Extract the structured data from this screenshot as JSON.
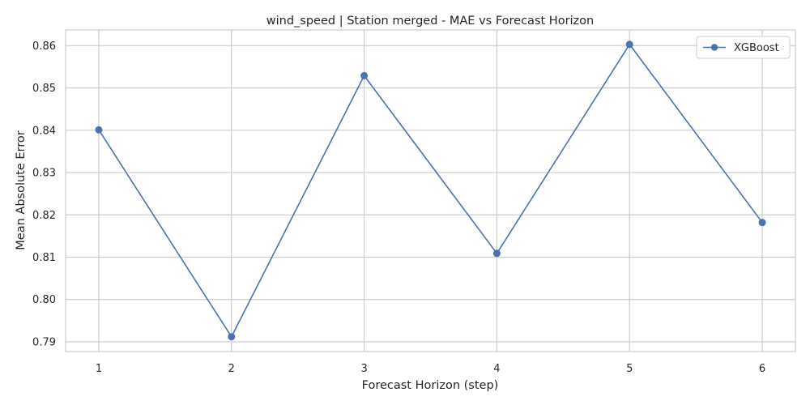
{
  "chart_data": {
    "type": "line",
    "title": "wind_speed | Station merged - MAE vs Forecast Horizon",
    "xlabel": "Forecast Horizon (step)",
    "ylabel": "Mean Absolute Error",
    "x": [
      1,
      2,
      3,
      4,
      5,
      6
    ],
    "xticks": [
      "1",
      "2",
      "3",
      "4",
      "5",
      "6"
    ],
    "yticks": [
      "0.79",
      "0.80",
      "0.81",
      "0.82",
      "0.83",
      "0.84",
      "0.85",
      "0.86"
    ],
    "xlim": [
      0.75,
      6.25
    ],
    "ylim": [
      0.7877,
      0.8637
    ],
    "grid": true,
    "legend_position": "top-right",
    "series": [
      {
        "name": "XGBoost",
        "color": "#4c72b0",
        "marker": "circle",
        "values": [
          0.8401,
          0.7912,
          0.8529,
          0.8109,
          0.8603,
          0.8182
        ]
      }
    ]
  }
}
